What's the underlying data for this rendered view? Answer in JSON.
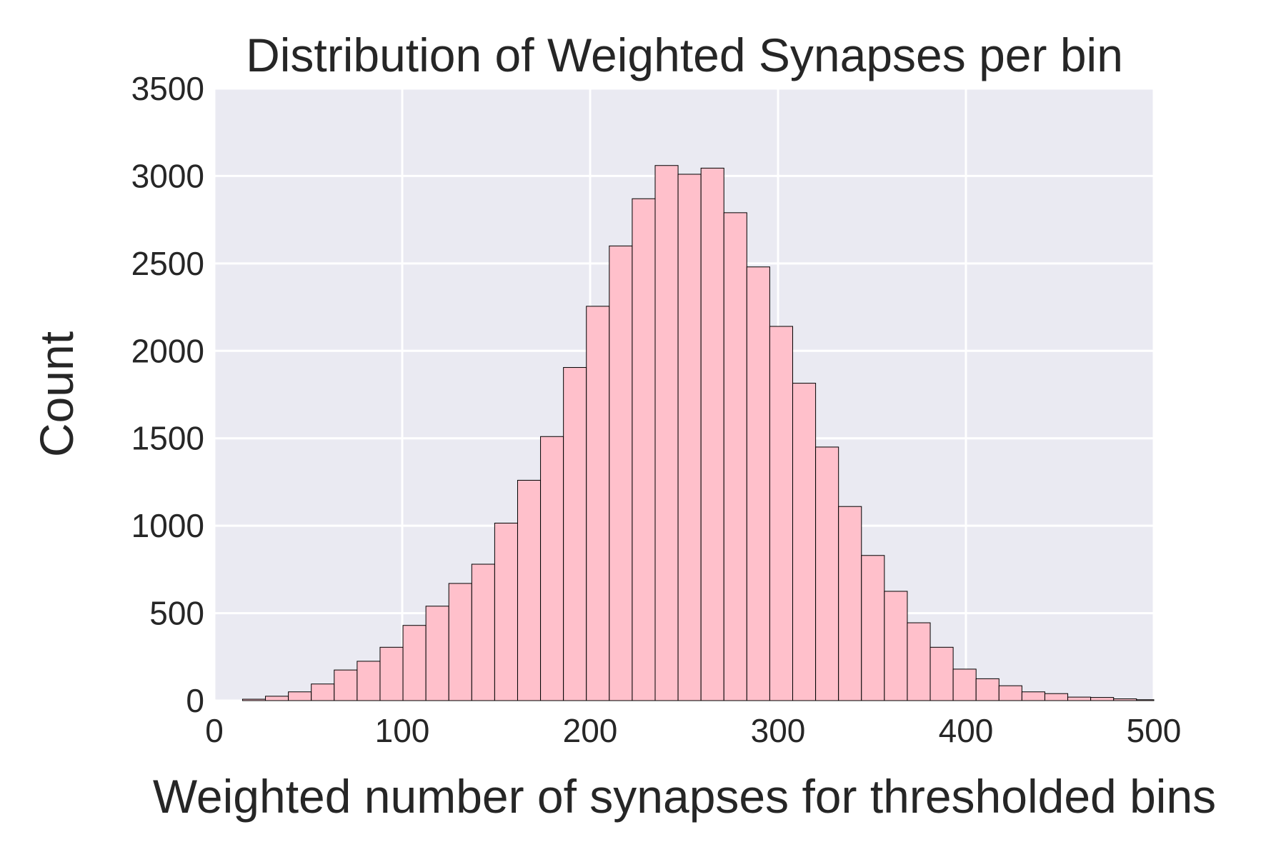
{
  "chart_data": {
    "type": "bar",
    "title": "Distribution of Weighted Synapses per bin",
    "xlabel": "Weighted number of synapses for thresholded bins",
    "ylabel": "Count",
    "xlim": [
      0,
      500
    ],
    "ylim": [
      0,
      3500
    ],
    "xticks": [
      0,
      100,
      200,
      300,
      400,
      500
    ],
    "yticks": [
      0,
      500,
      1000,
      1500,
      2000,
      2500,
      3000,
      3500
    ],
    "grid": true,
    "bin_edges": [
      15,
      27.2,
      39.4,
      51.6,
      63.8,
      76,
      88.2,
      100.4,
      112.6,
      124.8,
      137,
      149.2,
      161.4,
      173.6,
      185.8,
      198,
      210.2,
      222.4,
      234.6,
      246.8,
      259,
      271.2,
      283.4,
      295.6,
      307.8,
      320,
      332.2,
      344.4,
      356.6,
      368.8,
      381,
      393.2,
      405.4,
      417.6,
      429.8,
      442,
      454.2,
      466.4,
      478.6,
      490.8,
      503
    ],
    "values": [
      8,
      25,
      50,
      95,
      175,
      225,
      305,
      430,
      540,
      670,
      780,
      1015,
      1260,
      1510,
      1905,
      2255,
      2600,
      2870,
      3060,
      3010,
      3045,
      2790,
      2480,
      2140,
      1815,
      1450,
      1110,
      830,
      625,
      445,
      305,
      180,
      125,
      85,
      50,
      40,
      20,
      18,
      10,
      5
    ],
    "colors": {
      "bar_fill": "#ffc0cb",
      "bar_edge": "#000000",
      "plot_background": "#eaeaf2",
      "grid": "#ffffff",
      "text": "#262626"
    }
  }
}
